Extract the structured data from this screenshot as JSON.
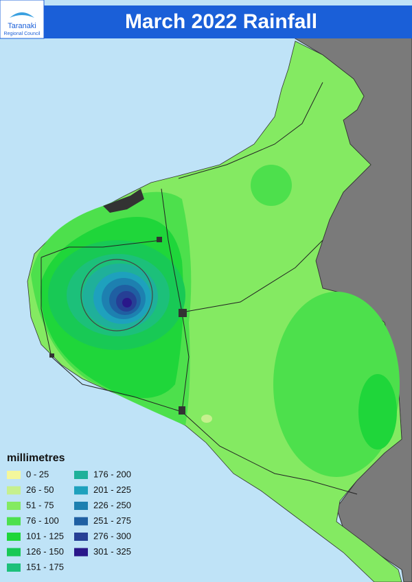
{
  "header": {
    "title": "March 2022 Rainfall",
    "logo_name": "Taranaki",
    "logo_subtitle": "Regional Council"
  },
  "legend": {
    "title": "millimetres",
    "items": [
      {
        "label": "0 - 25",
        "color": "#f4f79c"
      },
      {
        "label": "26 - 50",
        "color": "#c6f08e"
      },
      {
        "label": "51 - 75",
        "color": "#84ea62"
      },
      {
        "label": "76 - 100",
        "color": "#4de04c"
      },
      {
        "label": "101 - 125",
        "color": "#1fd63a"
      },
      {
        "label": "126 - 150",
        "color": "#18c955"
      },
      {
        "label": "151 - 175",
        "color": "#1cc07a"
      },
      {
        "label": "176 - 200",
        "color": "#1fb09a"
      },
      {
        "label": "201 - 225",
        "color": "#1ea1bd"
      },
      {
        "label": "226 - 250",
        "color": "#1d80b0"
      },
      {
        "label": "251 - 275",
        "color": "#1f5fa2"
      },
      {
        "label": "276 - 300",
        "color": "#263f95"
      },
      {
        "label": "301 - 325",
        "color": "#2a178a"
      }
    ]
  }
}
